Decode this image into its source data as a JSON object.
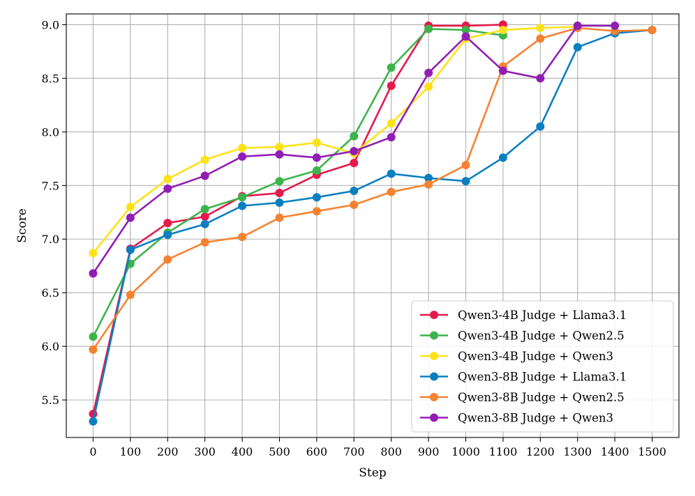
{
  "chart_data": {
    "type": "line",
    "title": "",
    "xlabel": "Step",
    "ylabel": "Score",
    "x": [
      0,
      100,
      200,
      300,
      400,
      500,
      600,
      700,
      800,
      900,
      1000,
      1100,
      1200,
      1300,
      1400,
      1500
    ],
    "xticks": [
      "0",
      "100",
      "200",
      "300",
      "400",
      "500",
      "600",
      "700",
      "800",
      "900",
      "1000",
      "1100",
      "1200",
      "1300",
      "1400",
      "1500"
    ],
    "yticks": [
      "5.5",
      "6.0",
      "6.5",
      "7.0",
      "7.5",
      "8.0",
      "8.5",
      "9.0"
    ],
    "xlim": [
      -72,
      1572
    ],
    "ylim": [
      5.15,
      9.1
    ],
    "grid": true,
    "legend_position": "lower-right",
    "series": [
      {
        "name": "Qwen3-4B Judge + Llama3.1",
        "color": "#e6194b",
        "points": [
          [
            0,
            5.37
          ],
          [
            100,
            6.91
          ],
          [
            200,
            7.15
          ],
          [
            300,
            7.21
          ],
          [
            400,
            7.4
          ],
          [
            500,
            7.43
          ],
          [
            600,
            7.6
          ],
          [
            700,
            7.71
          ],
          [
            800,
            8.43
          ],
          [
            900,
            8.99
          ],
          [
            1000,
            8.99
          ],
          [
            1100,
            9.0
          ]
        ]
      },
      {
        "name": "Qwen3-4B Judge + Qwen2.5",
        "color": "#3cb44b",
        "points": [
          [
            0,
            6.09
          ],
          [
            100,
            6.77
          ],
          [
            200,
            7.06
          ],
          [
            300,
            7.28
          ],
          [
            400,
            7.39
          ],
          [
            500,
            7.54
          ],
          [
            600,
            7.64
          ],
          [
            700,
            7.96
          ],
          [
            800,
            8.6
          ],
          [
            900,
            8.96
          ],
          [
            1000,
            8.95
          ],
          [
            1100,
            8.9
          ]
        ]
      },
      {
        "name": "Qwen3-4B Judge + Qwen3",
        "color": "#ffe119",
        "points": [
          [
            0,
            6.87
          ],
          [
            100,
            7.3
          ],
          [
            200,
            7.56
          ],
          [
            300,
            7.74
          ],
          [
            400,
            7.85
          ],
          [
            500,
            7.86
          ],
          [
            600,
            7.9
          ],
          [
            700,
            7.8
          ],
          [
            800,
            8.08
          ],
          [
            900,
            8.42
          ],
          [
            1000,
            8.87
          ],
          [
            1100,
            8.95
          ],
          [
            1200,
            8.97
          ],
          [
            1300,
            8.98
          ]
        ]
      },
      {
        "name": "Qwen3-8B Judge + Llama3.1",
        "color": "#0a7fc0",
        "points": [
          [
            0,
            5.3
          ],
          [
            100,
            6.9
          ],
          [
            200,
            7.04
          ],
          [
            300,
            7.14
          ],
          [
            400,
            7.31
          ],
          [
            500,
            7.34
          ],
          [
            600,
            7.39
          ],
          [
            700,
            7.45
          ],
          [
            800,
            7.61
          ],
          [
            900,
            7.57
          ],
          [
            1000,
            7.54
          ],
          [
            1100,
            7.76
          ],
          [
            1200,
            8.05
          ],
          [
            1300,
            8.79
          ],
          [
            1400,
            8.92
          ],
          [
            1500,
            8.95
          ]
        ]
      },
      {
        "name": "Qwen3-8B Judge + Qwen2.5",
        "color": "#f58231",
        "points": [
          [
            0,
            5.97
          ],
          [
            100,
            6.48
          ],
          [
            200,
            6.81
          ],
          [
            300,
            6.97
          ],
          [
            400,
            7.02
          ],
          [
            500,
            7.2
          ],
          [
            600,
            7.26
          ],
          [
            700,
            7.32
          ],
          [
            800,
            7.44
          ],
          [
            900,
            7.51
          ],
          [
            1000,
            7.69
          ],
          [
            1100,
            8.61
          ],
          [
            1200,
            8.87
          ],
          [
            1300,
            8.97
          ],
          [
            1400,
            8.94
          ],
          [
            1500,
            8.95
          ]
        ]
      },
      {
        "name": "Qwen3-8B Judge + Qwen3",
        "color": "#911eb4",
        "points": [
          [
            0,
            6.68
          ],
          [
            100,
            7.2
          ],
          [
            200,
            7.47
          ],
          [
            300,
            7.59
          ],
          [
            400,
            7.77
          ],
          [
            500,
            7.79
          ],
          [
            600,
            7.76
          ],
          [
            700,
            7.82
          ],
          [
            800,
            7.95
          ],
          [
            900,
            8.55
          ],
          [
            1000,
            8.89
          ],
          [
            1100,
            8.57
          ],
          [
            1200,
            8.5
          ],
          [
            1300,
            8.99
          ],
          [
            1400,
            8.99
          ]
        ]
      }
    ]
  }
}
